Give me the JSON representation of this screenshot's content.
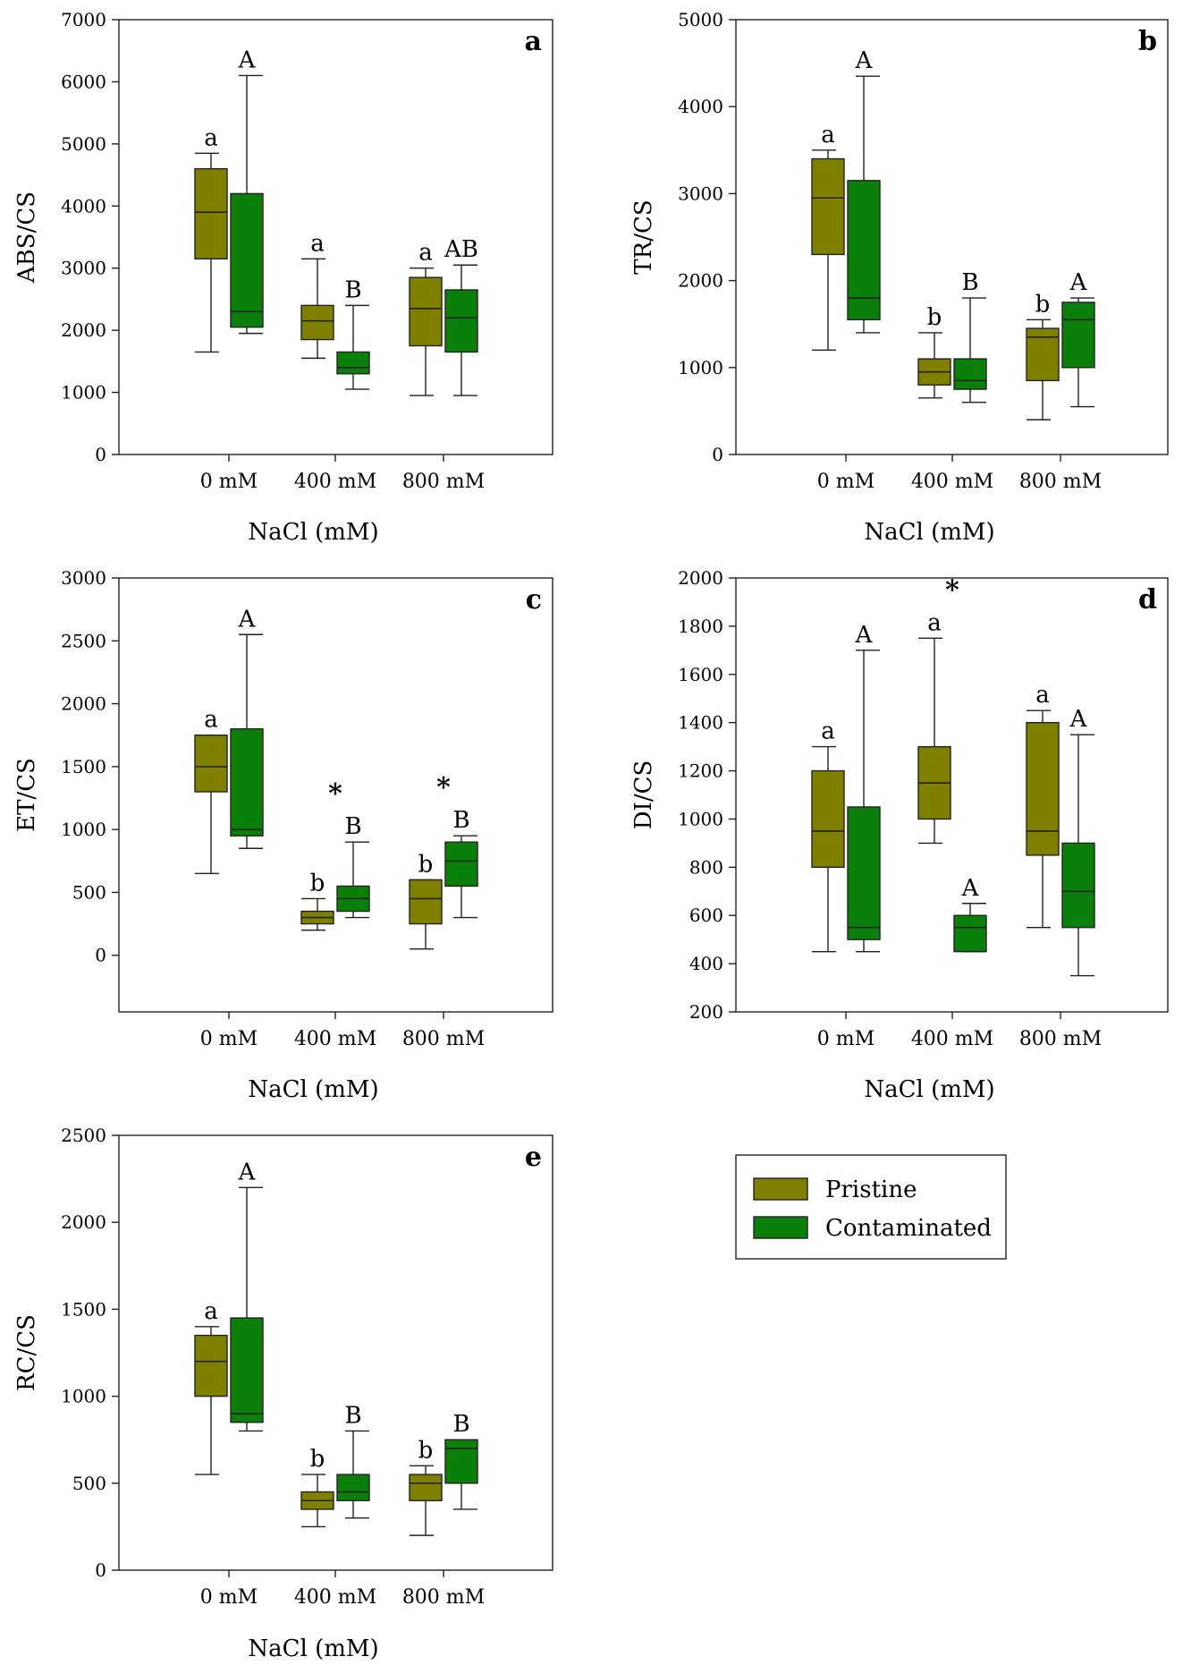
{
  "colors": {
    "pristine": "#808000",
    "contaminated": "#0a800a"
  },
  "legend": {
    "items": [
      "Pristine",
      "Contaminated"
    ]
  },
  "chart_data": [
    {
      "type": "boxplot",
      "panel": "a",
      "ylabel": "ABS/CS",
      "xlabel": "NaCl (mM)",
      "ylim": [
        0,
        7000
      ],
      "yticks": [
        0,
        1000,
        2000,
        3000,
        4000,
        5000,
        6000,
        7000
      ],
      "categories": [
        "0 mM",
        "400 mM",
        "800 mM"
      ],
      "series": [
        {
          "name": "Pristine",
          "boxes": [
            {
              "min": 1650,
              "q1": 3150,
              "median": 3900,
              "q3": 4600,
              "max": 4850
            },
            {
              "min": 1550,
              "q1": 1850,
              "median": 2150,
              "q3": 2400,
              "max": 3150
            },
            {
              "min": 950,
              "q1": 1750,
              "median": 2350,
              "q3": 2850,
              "max": 3000
            }
          ],
          "letters": [
            "a",
            "a",
            "a"
          ]
        },
        {
          "name": "Contaminated",
          "boxes": [
            {
              "min": 1950,
              "q1": 2050,
              "median": 2300,
              "q3": 4200,
              "max": 6100
            },
            {
              "min": 1050,
              "q1": 1300,
              "median": 1400,
              "q3": 1650,
              "max": 2400
            },
            {
              "min": 950,
              "q1": 1650,
              "median": 2200,
              "q3": 2650,
              "max": 3050
            }
          ],
          "letters": [
            "A",
            "B",
            "AB"
          ]
        }
      ],
      "stars": []
    },
    {
      "type": "boxplot",
      "panel": "b",
      "ylabel": "TR/CS",
      "xlabel": "NaCl (mM)",
      "ylim": [
        0,
        5000
      ],
      "yticks": [
        0,
        1000,
        2000,
        3000,
        4000,
        5000
      ],
      "categories": [
        "0 mM",
        "400 mM",
        "800 mM"
      ],
      "series": [
        {
          "name": "Pristine",
          "boxes": [
            {
              "min": 1200,
              "q1": 2300,
              "median": 2950,
              "q3": 3400,
              "max": 3500
            },
            {
              "min": 650,
              "q1": 800,
              "median": 950,
              "q3": 1100,
              "max": 1400
            },
            {
              "min": 400,
              "q1": 850,
              "median": 1350,
              "q3": 1450,
              "max": 1550
            }
          ],
          "letters": [
            "a",
            "b",
            "b"
          ]
        },
        {
          "name": "Contaminated",
          "boxes": [
            {
              "min": 1400,
              "q1": 1550,
              "median": 1800,
              "q3": 3150,
              "max": 4350
            },
            {
              "min": 600,
              "q1": 750,
              "median": 850,
              "q3": 1100,
              "max": 1800
            },
            {
              "min": 550,
              "q1": 1000,
              "median": 1550,
              "q3": 1750,
              "max": 1800
            }
          ],
          "letters": [
            "A",
            "B",
            "A"
          ]
        }
      ],
      "stars": []
    },
    {
      "type": "boxplot",
      "panel": "c",
      "ylabel": "ET/CS",
      "xlabel": "NaCl (mM)",
      "ylim": [
        -450,
        3000
      ],
      "yticks": [
        0,
        500,
        1000,
        1500,
        2000,
        2500,
        3000
      ],
      "categories": [
        "0 mM",
        "400 mM",
        "800 mM"
      ],
      "series": [
        {
          "name": "Pristine",
          "boxes": [
            {
              "min": 650,
              "q1": 1300,
              "median": 1500,
              "q3": 1750,
              "max": 1750
            },
            {
              "min": 200,
              "q1": 250,
              "median": 300,
              "q3": 350,
              "max": 450
            },
            {
              "min": 50,
              "q1": 250,
              "median": 450,
              "q3": 600,
              "max": 600
            }
          ],
          "letters": [
            "a",
            "b",
            "b"
          ]
        },
        {
          "name": "Contaminated",
          "boxes": [
            {
              "min": 850,
              "q1": 950,
              "median": 1000,
              "q3": 1800,
              "max": 2550
            },
            {
              "min": 300,
              "q1": 350,
              "median": 450,
              "q3": 550,
              "max": 900
            },
            {
              "min": 300,
              "q1": 550,
              "median": 750,
              "q3": 900,
              "max": 950
            }
          ],
          "letters": [
            "A",
            "B",
            "B"
          ]
        }
      ],
      "stars": [
        {
          "category": 1,
          "label": "*"
        },
        {
          "category": 2,
          "label": "*"
        }
      ]
    },
    {
      "type": "boxplot",
      "panel": "d",
      "ylabel": "DI/CS",
      "xlabel": "NaCl (mM)",
      "ylim": [
        200,
        2000
      ],
      "yticks": [
        200,
        400,
        600,
        800,
        1000,
        1200,
        1400,
        1600,
        1800,
        2000
      ],
      "categories": [
        "0 mM",
        "400 mM",
        "800 mM"
      ],
      "series": [
        {
          "name": "Pristine",
          "boxes": [
            {
              "min": 450,
              "q1": 800,
              "median": 950,
              "q3": 1200,
              "max": 1300
            },
            {
              "min": 900,
              "q1": 1000,
              "median": 1150,
              "q3": 1300,
              "max": 1750
            },
            {
              "min": 550,
              "q1": 850,
              "median": 950,
              "q3": 1400,
              "max": 1450
            }
          ],
          "letters": [
            "a",
            "a",
            "a"
          ]
        },
        {
          "name": "Contaminated",
          "boxes": [
            {
              "min": 450,
              "q1": 500,
              "median": 550,
              "q3": 1050,
              "max": 1700
            },
            {
              "min": 450,
              "q1": 450,
              "median": 550,
              "q3": 600,
              "max": 650
            },
            {
              "min": 350,
              "q1": 550,
              "median": 700,
              "q3": 900,
              "max": 1350
            }
          ],
          "letters": [
            "A",
            "A",
            "A"
          ]
        }
      ],
      "stars": [
        {
          "category": 1,
          "label": "*"
        }
      ]
    },
    {
      "type": "boxplot",
      "panel": "e",
      "ylabel": "RC/CS",
      "xlabel": "NaCl (mM)",
      "ylim": [
        0,
        2500
      ],
      "yticks": [
        0,
        500,
        1000,
        1500,
        2000,
        2500
      ],
      "categories": [
        "0 mM",
        "400 mM",
        "800 mM"
      ],
      "series": [
        {
          "name": "Pristine",
          "boxes": [
            {
              "min": 550,
              "q1": 1000,
              "median": 1200,
              "q3": 1350,
              "max": 1400
            },
            {
              "min": 250,
              "q1": 350,
              "median": 400,
              "q3": 450,
              "max": 550
            },
            {
              "min": 200,
              "q1": 400,
              "median": 500,
              "q3": 550,
              "max": 600
            }
          ],
          "letters": [
            "a",
            "b",
            "b"
          ]
        },
        {
          "name": "Contaminated",
          "boxes": [
            {
              "min": 800,
              "q1": 850,
              "median": 900,
              "q3": 1450,
              "max": 2200
            },
            {
              "min": 300,
              "q1": 400,
              "median": 450,
              "q3": 550,
              "max": 800
            },
            {
              "min": 350,
              "q1": 500,
              "median": 700,
              "q3": 750,
              "max": 750
            }
          ],
          "letters": [
            "A",
            "B",
            "B"
          ]
        }
      ],
      "stars": []
    }
  ]
}
